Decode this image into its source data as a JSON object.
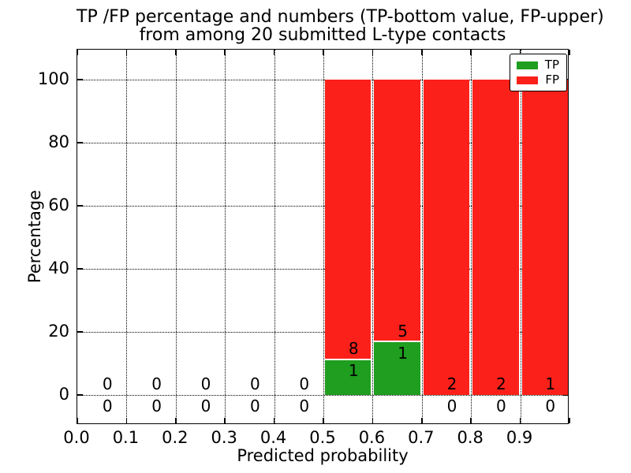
{
  "title": {
    "line1": "TP /FP percentage and numbers (TP-bottom value, FP-upper)",
    "line2": "from among 20 submitted L-type contacts"
  },
  "axes": {
    "xlabel": "Predicted probability",
    "ylabel": "Percentage"
  },
  "legend": {
    "items": [
      {
        "label": "TP",
        "color": "#1f9e1f"
      },
      {
        "label": "FP",
        "color": "#fb211a"
      }
    ]
  },
  "chart_data": {
    "type": "bar",
    "stacked": true,
    "title": "TP /FP percentage and numbers (TP-bottom value, FP-upper) from among 20 submitted L-type contacts",
    "xlabel": "Predicted probability",
    "ylabel": "Percentage",
    "xlim": [
      0.0,
      1.0
    ],
    "ylim": [
      -9.5,
      109.5
    ],
    "xticks": [
      "0.0",
      "0.1",
      "0.2",
      "0.3",
      "0.4",
      "0.5",
      "0.6",
      "0.7",
      "0.8",
      "0.9"
    ],
    "yticks": [
      0,
      20,
      40,
      60,
      80,
      100
    ],
    "grid": "dotted",
    "legend_position": "upper right",
    "total_submitted": 20,
    "bin_width": 0.1,
    "bins": [
      {
        "range": "0.0-0.1",
        "tp_count": 0,
        "fp_count": 0,
        "tp_pct": 0,
        "fp_pct": 0
      },
      {
        "range": "0.1-0.2",
        "tp_count": 0,
        "fp_count": 0,
        "tp_pct": 0,
        "fp_pct": 0
      },
      {
        "range": "0.2-0.3",
        "tp_count": 0,
        "fp_count": 0,
        "tp_pct": 0,
        "fp_pct": 0
      },
      {
        "range": "0.3-0.4",
        "tp_count": 0,
        "fp_count": 0,
        "tp_pct": 0,
        "fp_pct": 0
      },
      {
        "range": "0.4-0.5",
        "tp_count": 0,
        "fp_count": 0,
        "tp_pct": 0,
        "fp_pct": 0
      },
      {
        "range": "0.5-0.6",
        "tp_count": 1,
        "fp_count": 8,
        "tp_pct": 11.1,
        "fp_pct": 88.9
      },
      {
        "range": "0.6-0.7",
        "tp_count": 1,
        "fp_count": 5,
        "tp_pct": 16.7,
        "fp_pct": 83.3
      },
      {
        "range": "0.7-0.8",
        "tp_count": 0,
        "fp_count": 2,
        "tp_pct": 0,
        "fp_pct": 100
      },
      {
        "range": "0.8-0.9",
        "tp_count": 0,
        "fp_count": 2,
        "tp_pct": 0,
        "fp_pct": 100
      },
      {
        "range": "0.9-1.0",
        "tp_count": 0,
        "fp_count": 1,
        "tp_pct": 0,
        "fp_pct": 100
      }
    ],
    "series": [
      {
        "name": "TP",
        "color": "#1f9e1f"
      },
      {
        "name": "FP",
        "color": "#fb211a"
      }
    ]
  }
}
